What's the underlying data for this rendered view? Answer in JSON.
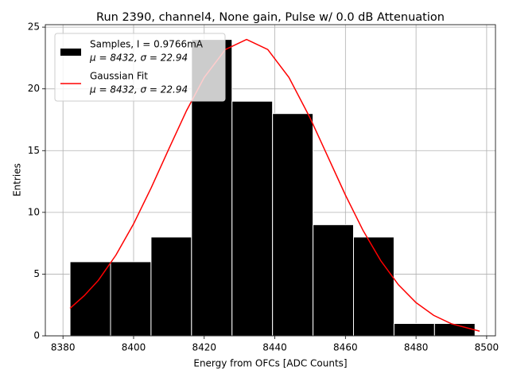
{
  "chart_data": {
    "type": "histogram",
    "title": "Run 2390, channel4, None gain, Pulse w/ 0.0 dB Attenuation",
    "xlabel": "Energy from OFCs [ADC Counts]",
    "ylabel": "Entries",
    "xlim": [
      8375,
      8502.5
    ],
    "ylim": [
      0,
      25.2
    ],
    "xticks": [
      8380,
      8400,
      8420,
      8440,
      8460,
      8480,
      8500
    ],
    "yticks": [
      0,
      5,
      10,
      15,
      20,
      25
    ],
    "grid": true,
    "legend": "upper left",
    "series": [
      {
        "type": "histogram",
        "name": "Samples, I = 0.9766mA",
        "detail": "μ = 8432, σ = 22.94",
        "color": "#000000",
        "edgecolor": "#ffffff",
        "bins": [
          8382.0,
          8393.47,
          8404.94,
          8416.41,
          8427.88,
          8439.35,
          8450.82,
          8462.29,
          8473.76,
          8485.23,
          8496.7
        ],
        "values": [
          6,
          6,
          8,
          24,
          19,
          18,
          9,
          8,
          1,
          1
        ]
      },
      {
        "type": "line",
        "name": "Gaussian Fit",
        "detail": "μ = 8432, σ = 22.94",
        "color": "#ff0000",
        "x": [
          8382,
          8386,
          8390,
          8395,
          8400,
          8405,
          8410,
          8415,
          8420,
          8426,
          8432,
          8438,
          8444,
          8450,
          8455,
          8460,
          8465,
          8470,
          8475,
          8480,
          8485,
          8490,
          8498
        ],
        "values": [
          2.23,
          3.25,
          4.49,
          6.54,
          9.07,
          12.0,
          15.15,
          18.24,
          20.93,
          23.19,
          24,
          23.19,
          20.93,
          17.64,
          14.52,
          11.4,
          8.53,
          6.09,
          4.14,
          2.69,
          1.66,
          0.98,
          0.38
        ]
      }
    ]
  }
}
